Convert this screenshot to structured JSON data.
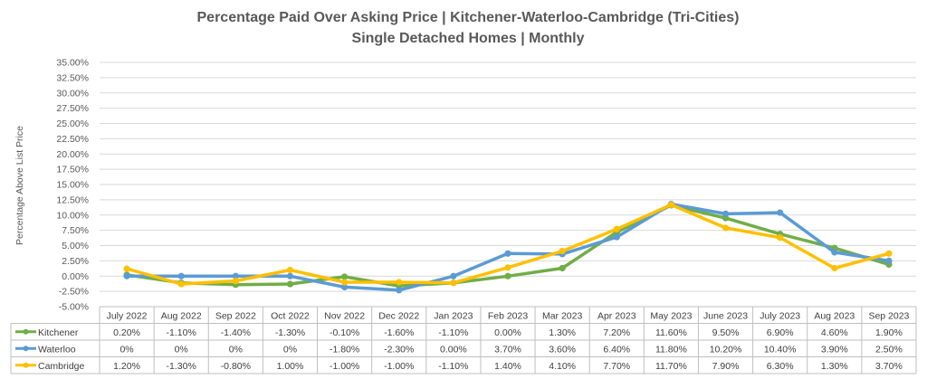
{
  "chart_data": {
    "type": "line",
    "title": "Percentage Paid Over Asking Price | Kitchener-Waterloo-Cambridge (Tri-Cities)",
    "subtitle": "Single Detached Homes | Monthly",
    "ylabel": "Percentage Above List Price",
    "xlabel": "",
    "ylim": [
      -5,
      35
    ],
    "ytick_step": 2.5,
    "yticks": [
      "35.00%",
      "32.50%",
      "30.00%",
      "27.50%",
      "25.00%",
      "22.50%",
      "20.00%",
      "17.50%",
      "15.00%",
      "12.50%",
      "10.00%",
      "7.50%",
      "5.00%",
      "2.50%",
      "0.00%",
      "-2.50%",
      "-5.00%"
    ],
    "categories": [
      "July 2022",
      "Aug 2022",
      "Sep 2022",
      "Oct 2022",
      "Nov 2022",
      "Dec 2022",
      "Jan 2023",
      "Feb 2023",
      "Mar 2023",
      "Apr 2023",
      "May 2023",
      "June 2023",
      "July 2023",
      "Aug 2023",
      "Sep 2023"
    ],
    "grid": true,
    "legend": "data-table-left",
    "series": [
      {
        "name": "Kitchener",
        "color": "#70AD47",
        "values": [
          0.2,
          -1.1,
          -1.4,
          -1.3,
          -0.1,
          -1.6,
          -1.1,
          0.0,
          1.3,
          7.2,
          11.6,
          9.5,
          6.9,
          4.6,
          1.9
        ],
        "labels": [
          "0.20%",
          "-1.10%",
          "-1.40%",
          "-1.30%",
          "-0.10%",
          "-1.60%",
          "-1.10%",
          "0.00%",
          "1.30%",
          "7.20%",
          "11.60%",
          "9.50%",
          "6.90%",
          "4.60%",
          "1.90%"
        ]
      },
      {
        "name": "Waterloo",
        "color": "#5B9BD5",
        "values": [
          0,
          0,
          0,
          0,
          -1.8,
          -2.3,
          0.0,
          3.7,
          3.6,
          6.4,
          11.8,
          10.2,
          10.4,
          3.9,
          2.5
        ],
        "labels": [
          "0%",
          "0%",
          "0%",
          "0%",
          "-1.80%",
          "-2.30%",
          "0.00%",
          "3.70%",
          "3.60%",
          "6.40%",
          "11.80%",
          "10.20%",
          "10.40%",
          "3.90%",
          "2.50%"
        ]
      },
      {
        "name": "Cambridge",
        "color": "#FFC000",
        "values": [
          1.2,
          -1.3,
          -0.8,
          1.0,
          -1.0,
          -1.0,
          -1.1,
          1.4,
          4.1,
          7.7,
          11.7,
          7.9,
          6.3,
          1.3,
          3.7
        ],
        "labels": [
          "1.20%",
          "-1.30%",
          "-0.80%",
          "1.00%",
          "-1.00%",
          "-1.00%",
          "-1.10%",
          "1.40%",
          "4.10%",
          "7.70%",
          "11.70%",
          "7.90%",
          "6.30%",
          "1.30%",
          "3.70%"
        ]
      }
    ]
  }
}
